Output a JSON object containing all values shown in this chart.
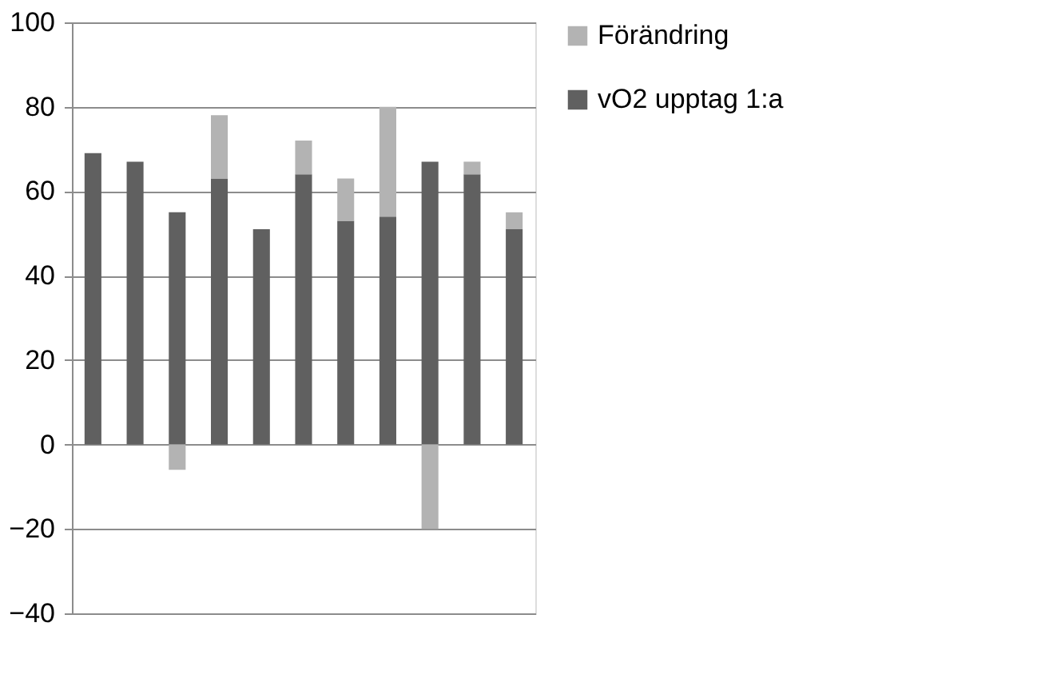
{
  "chart_data": {
    "type": "bar",
    "stacked": true,
    "categories": [
      null,
      null,
      null,
      null,
      null,
      null,
      null,
      null,
      null,
      null,
      null
    ],
    "series": [
      {
        "name": "vO2 upptag 1:a",
        "color": "#606060",
        "values": [
          69,
          67,
          55,
          63,
          51,
          64,
          53,
          54,
          67,
          64,
          51
        ]
      },
      {
        "name": "Förändring",
        "color": "#b3b3b3",
        "values": [
          null,
          null,
          -6,
          15,
          null,
          8,
          10,
          26,
          -20,
          3,
          4
        ]
      }
    ],
    "ylim": [
      -40,
      100
    ],
    "yticks": [
      -40,
      -20,
      0,
      20,
      40,
      60,
      80,
      100
    ],
    "grid": "y",
    "legend": "right"
  }
}
